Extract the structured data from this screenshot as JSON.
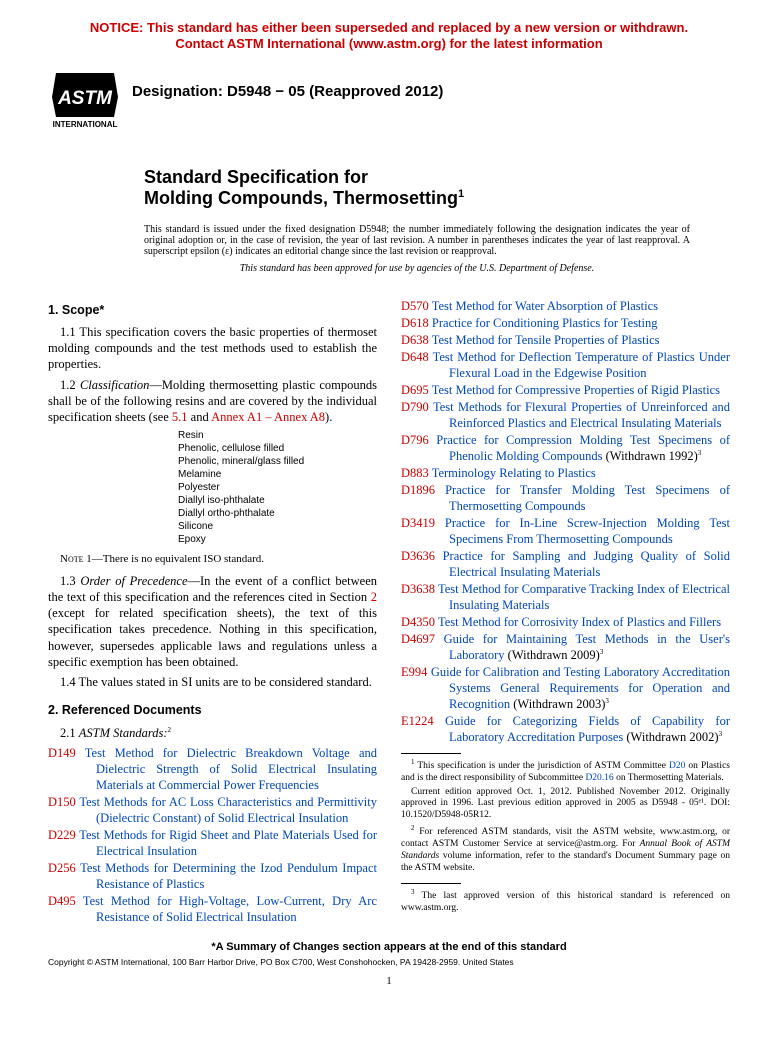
{
  "notice": {
    "line1": "NOTICE: This standard has either been superseded and replaced by a new version or withdrawn.",
    "line2": "Contact ASTM International (www.astm.org) for the latest information",
    "color": "#cc0000"
  },
  "header": {
    "designation_label": "Designation: D5948 − 05 (Reapproved 2012)",
    "logo_text_top": "INTERNATIONAL"
  },
  "title": {
    "line1": "Standard Specification for",
    "line2": "Molding Compounds, Thermosetting",
    "superscript": "1"
  },
  "issuance": "This standard is issued under the fixed designation D5948; the number immediately following the designation indicates the year of original adoption or, in the case of revision, the year of last revision. A number in parentheses indicates the year of last reapproval. A superscript epsilon (ε) indicates an editorial change since the last revision or reapproval.",
  "dod_approval": "This standard has been approved for use by agencies of the U.S. Department of Defense.",
  "scope": {
    "heading": "1. Scope*",
    "p1_1": "1.1 This specification covers the basic properties of thermoset molding compounds and the test methods used to establish the properties.",
    "p1_2_prefix": "1.2 ",
    "p1_2_label": "Classification",
    "p1_2_text": "—Molding thermosetting plastic compounds shall be of the following resins and are covered by the individual specification sheets (see ",
    "p1_2_link1": "5.1",
    "p1_2_mid": " and ",
    "p1_2_link2": "Annex A1 – Annex A8",
    "p1_2_end": ").",
    "resin_header": "Resin",
    "resins": [
      "Phenolic, cellulose filled",
      "Phenolic, mineral/glass filled",
      "Melamine",
      "Polyester",
      "Diallyl iso-phthalate",
      "Diallyl ortho-phthalate",
      "Silicone",
      "Epoxy"
    ],
    "note1_label": "Note 1",
    "note1_text": "—There is no equivalent ISO standard.",
    "p1_3_prefix": "1.3 ",
    "p1_3_label": "Order of Precedence",
    "p1_3_text_a": "—In the event of a conflict between the text of this specification and the references cited in Section ",
    "p1_3_link": "2",
    "p1_3_text_b": " (except for related specification sheets), the text of this specification takes precedence. Nothing in this specification, however, supersedes applicable laws and regulations unless a specific exemption has been obtained.",
    "p1_4": "1.4 The values stated in SI units are to be considered standard."
  },
  "refs": {
    "heading": "2. Referenced Documents",
    "sub_label": "2.1 ",
    "sub_italic": "ASTM Standards:",
    "sub_sup": "2",
    "items": [
      {
        "code": "D149",
        "title": "Test Method for Dielectric Breakdown Voltage and Dielectric Strength of Solid Electrical Insulating Materials at Commercial Power Frequencies"
      },
      {
        "code": "D150",
        "title": "Test Methods for AC Loss Characteristics and Permittivity (Dielectric Constant) of Solid Electrical Insulation"
      },
      {
        "code": "D229",
        "title": "Test Methods for Rigid Sheet and Plate Materials Used for Electrical Insulation"
      },
      {
        "code": "D256",
        "title": "Test Methods for Determining the Izod Pendulum Impact Resistance of Plastics"
      },
      {
        "code": "D495",
        "title": "Test Method for High-Voltage, Low-Current, Dry Arc Resistance of Solid Electrical Insulation"
      },
      {
        "code": "D570",
        "title": "Test Method for Water Absorption of Plastics"
      },
      {
        "code": "D618",
        "title": "Practice for Conditioning Plastics for Testing"
      },
      {
        "code": "D638",
        "title": "Test Method for Tensile Properties of Plastics"
      },
      {
        "code": "D648",
        "title": "Test Method for Deflection Temperature of Plastics Under Flexural Load in the Edgewise Position"
      },
      {
        "code": "D695",
        "title": "Test Method for Compressive Properties of Rigid Plastics"
      },
      {
        "code": "D790",
        "title": "Test Methods for Flexural Properties of Unreinforced and Reinforced Plastics and Electrical Insulating Materials"
      },
      {
        "code": "D796",
        "title": "Practice for Compression Molding Test Specimens of Phenolic Molding Compounds",
        "withdrawn": "(Withdrawn 1992)",
        "sup": "3"
      },
      {
        "code": "D883",
        "title": "Terminology Relating to Plastics"
      },
      {
        "code": "D1896",
        "title": "Practice for Transfer Molding Test Specimens of Thermosetting Compounds"
      },
      {
        "code": "D3419",
        "title": "Practice for In-Line Screw-Injection Molding Test Specimens From Thermosetting Compounds"
      },
      {
        "code": "D3636",
        "title": "Practice for Sampling and Judging Quality of Solid Electrical Insulating Materials"
      },
      {
        "code": "D3638",
        "title": "Test Method for Comparative Tracking Index of Electrical Insulating Materials"
      },
      {
        "code": "D4350",
        "title": "Test Method for Corrosivity Index of Plastics and Fillers"
      },
      {
        "code": "D4697",
        "title": "Guide for Maintaining Test Methods in the User's Laboratory",
        "withdrawn": "(Withdrawn 2009)",
        "sup": "3"
      },
      {
        "code": "E994",
        "title": "Guide for Calibration and Testing Laboratory Accreditation Systems General Requirements for Operation and Recognition",
        "withdrawn": "(Withdrawn 2003)",
        "sup": "3"
      },
      {
        "code": "E1224",
        "title": "Guide for Categorizing Fields of Capability for Laboratory Accreditation Purposes",
        "withdrawn": "(Withdrawn 2002)",
        "sup": "3"
      }
    ]
  },
  "footnotes_left": {
    "fn1_a": "This specification is under the jurisdiction of ASTM Committee ",
    "fn1_link1": "D20",
    "fn1_b": " on Plastics and is the direct responsibility of Subcommittee ",
    "fn1_link2": "D20.16",
    "fn1_c": " on Thermosetting Materials.",
    "fn1_para2": "Current edition approved Oct. 1, 2012. Published November 2012. Originally approved in 1996. Last previous edition approved in 2005 as D5948 - 05ᵉ¹. DOI: 10.1520/D5948-05R12.",
    "fn2_a": "For referenced ASTM standards, visit the ASTM website, www.astm.org, or contact ASTM Customer Service at service@astm.org. For ",
    "fn2_italic": "Annual Book of ASTM Standards",
    "fn2_b": " volume information, refer to the standard's Document Summary page on the ASTM website."
  },
  "footnotes_right": {
    "fn3": "The last approved version of this historical standard is referenced on www.astm.org."
  },
  "summary_line": "*A Summary of Changes section appears at the end of this standard",
  "copyright": "Copyright © ASTM International, 100 Barr Harbor Drive, PO Box C700, West Conshohocken, PA 19428-2959. United States",
  "page_number": "1",
  "colors": {
    "red": "#cc0000",
    "blue": "#0047b3"
  }
}
